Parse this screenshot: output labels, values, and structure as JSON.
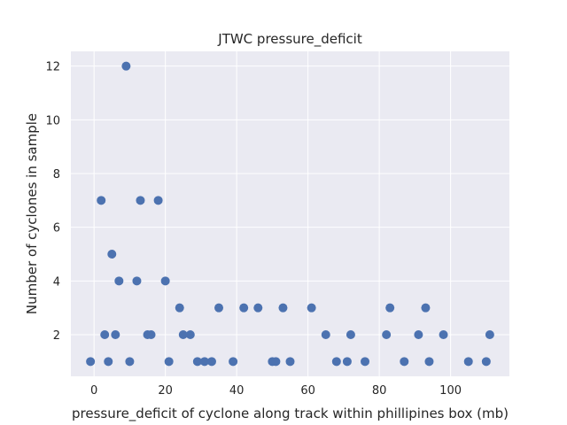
{
  "chart_data": {
    "type": "scatter",
    "title": "JTWC pressure_deficit",
    "xlabel": "pressure_deficit of cyclone along track within phillipines box (mb)",
    "ylabel": "Number of cyclones in sample",
    "xlim": [
      -6.5,
      116.5
    ],
    "ylim": [
      0.45,
      12.55
    ],
    "xticks": [
      0,
      20,
      40,
      60,
      80,
      100
    ],
    "yticks": [
      2,
      4,
      6,
      8,
      10,
      12
    ],
    "grid": true,
    "background_color": "#eaeaf2",
    "grid_color": "#ffffff",
    "point_color": "#4c72b0",
    "series": [
      {
        "x": [
          -1,
          2,
          3,
          4,
          5,
          6,
          7,
          9,
          10,
          12,
          13,
          15,
          16,
          18,
          20,
          21,
          24,
          25,
          27,
          29,
          31,
          33,
          35,
          39,
          42,
          46,
          50,
          51,
          53,
          55,
          61,
          65,
          68,
          71,
          72,
          76,
          82,
          83,
          87,
          91,
          93,
          94,
          98,
          105,
          110,
          111
        ],
        "y": [
          1,
          7,
          2,
          1,
          5,
          2,
          4,
          12,
          1,
          4,
          7,
          2,
          2,
          7,
          4,
          1,
          3,
          2,
          2,
          1,
          1,
          1,
          3,
          1,
          3,
          3,
          1,
          1,
          3,
          1,
          3,
          2,
          1,
          1,
          2,
          1,
          2,
          3,
          1,
          2,
          3,
          1,
          2,
          1,
          1,
          2
        ]
      }
    ]
  }
}
